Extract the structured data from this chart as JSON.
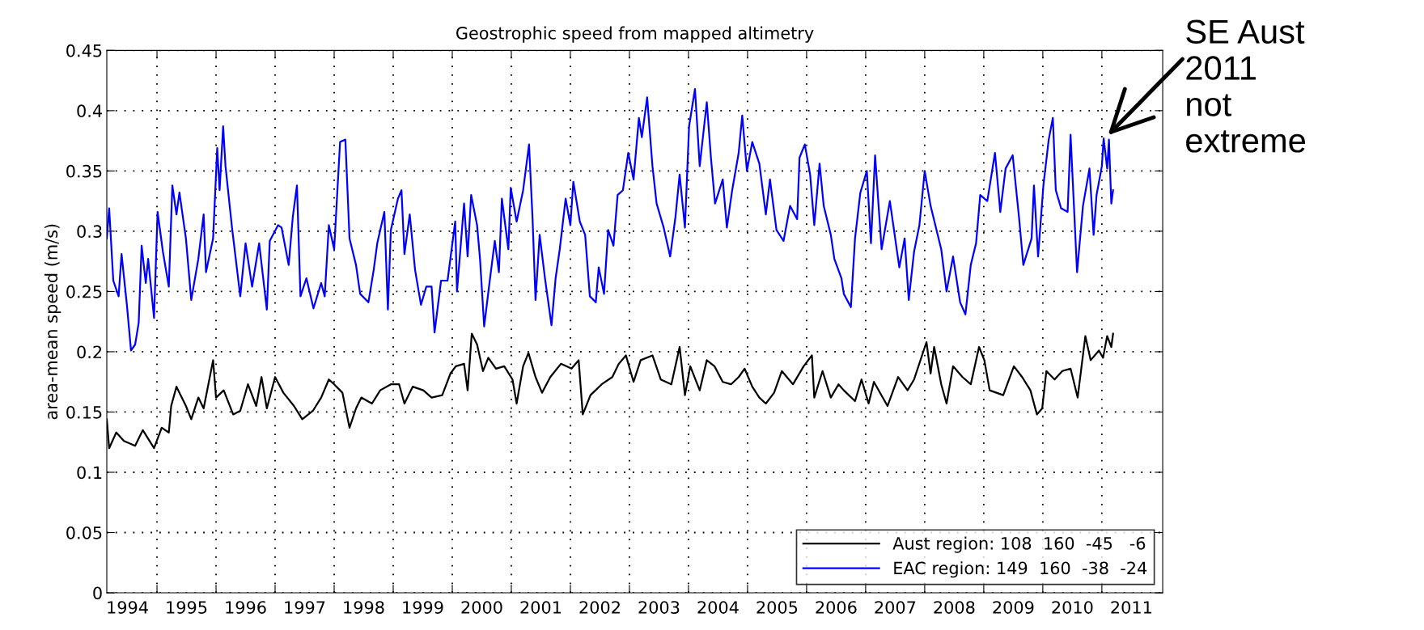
{
  "chart_data": {
    "type": "line",
    "title": "Geostrophic speed from mapped altimetry",
    "ylabel": "area-mean speed (m/s)",
    "xlim": [
      1994.15,
      2012.03
    ],
    "xticks": [
      {
        "value": 1995,
        "label": null
      },
      {
        "value": 1996,
        "label": null
      },
      {
        "value": 1997,
        "label": null
      },
      {
        "value": 1998,
        "label": null
      },
      {
        "value": 1999,
        "label": null
      },
      {
        "value": 2000,
        "label": null
      },
      {
        "value": 2001,
        "label": null
      },
      {
        "value": 2002,
        "label": null
      },
      {
        "value": 2003,
        "label": null
      },
      {
        "value": 2004,
        "label": null
      },
      {
        "value": 2005,
        "label": null
      },
      {
        "value": 2006,
        "label": null
      },
      {
        "value": 2007,
        "label": null
      },
      {
        "value": 2008,
        "label": null
      },
      {
        "value": 2009,
        "label": null
      },
      {
        "value": 2010,
        "label": null
      },
      {
        "value": 2011,
        "label": null
      },
      {
        "value": 1994.5,
        "label": "1994"
      },
      {
        "value": 1995.5,
        "label": "1995"
      },
      {
        "value": 1996.5,
        "label": "1996"
      },
      {
        "value": 1997.5,
        "label": "1997"
      },
      {
        "value": 1998.5,
        "label": "1998"
      },
      {
        "value": 1999.5,
        "label": "1999"
      },
      {
        "value": 2000.5,
        "label": "2000"
      },
      {
        "value": 2001.5,
        "label": "2001"
      },
      {
        "value": 2002.5,
        "label": "2002"
      },
      {
        "value": 2003.5,
        "label": "2003"
      },
      {
        "value": 2004.5,
        "label": "2004"
      },
      {
        "value": 2005.5,
        "label": "2005"
      },
      {
        "value": 2006.5,
        "label": "2006"
      },
      {
        "value": 2007.5,
        "label": "2007"
      },
      {
        "value": 2008.5,
        "label": "2008"
      },
      {
        "value": 2009.5,
        "label": "2009"
      },
      {
        "value": 2010.5,
        "label": "2010"
      },
      {
        "value": 2011.5,
        "label": "2011"
      }
    ],
    "ylim": [
      0,
      0.45
    ],
    "yticks": [
      0,
      0.05,
      0.1,
      0.15,
      0.2,
      0.25,
      0.3,
      0.35,
      0.4,
      0.45
    ],
    "grid": true,
    "legend": "bottom right",
    "marker": "none",
    "line_style": "solid",
    "annotations": [
      {
        "text": "SE Aust\n2011\nnot\nextreme",
        "x": 2011.05,
        "y": 0.377
      }
    ],
    "series": [
      {
        "name": "Aust region: 108  160  -45   -6",
        "color": "#000000",
        "x": [
          1994.15,
          1994.19,
          1994.31,
          1994.44,
          1994.63,
          1994.76,
          1994.95,
          1995.08,
          1995.2,
          1995.24,
          1995.33,
          1995.49,
          1995.58,
          1995.7,
          1995.79,
          1995.95,
          1996.0,
          1996.13,
          1996.29,
          1996.41,
          1996.54,
          1996.68,
          1996.77,
          1996.86,
          1997.0,
          1997.14,
          1997.32,
          1997.46,
          1997.64,
          1997.78,
          1997.91,
          1998.0,
          1998.14,
          1998.26,
          1998.37,
          1998.46,
          1998.64,
          1998.78,
          1998.96,
          1999.1,
          1999.19,
          1999.33,
          1999.51,
          1999.65,
          1999.83,
          1999.97,
          2000.06,
          2000.2,
          2000.26,
          2000.33,
          2000.42,
          2000.52,
          2000.61,
          2000.74,
          2000.88,
          2001.02,
          2001.09,
          2001.2,
          2001.29,
          2001.41,
          2001.52,
          2001.66,
          2001.84,
          2002.02,
          2002.14,
          2002.21,
          2002.34,
          2002.53,
          2002.71,
          2002.82,
          2002.94,
          2003.07,
          2003.19,
          2003.39,
          2003.53,
          2003.71,
          2003.85,
          2003.94,
          2004.03,
          2004.19,
          2004.31,
          2004.44,
          2004.58,
          2004.72,
          2004.85,
          2004.95,
          2005.08,
          2005.2,
          2005.31,
          2005.45,
          2005.58,
          2005.77,
          2005.95,
          2006.09,
          2006.13,
          2006.27,
          2006.41,
          2006.54,
          2006.63,
          2006.82,
          2006.93,
          2007.05,
          2007.14,
          2007.37,
          2007.55,
          2007.71,
          2007.82,
          2008.03,
          2008.1,
          2008.16,
          2008.28,
          2008.37,
          2008.48,
          2008.64,
          2008.78,
          2008.92,
          2009.01,
          2009.1,
          2009.33,
          2009.51,
          2009.65,
          2009.79,
          2009.9,
          2009.99,
          2010.06,
          2010.2,
          2010.33,
          2010.47,
          2010.59,
          2010.72,
          2010.81,
          2010.95,
          2011.02,
          2011.09,
          2011.16,
          2011.19
        ],
        "values": [
          0.144,
          0.12,
          0.133,
          0.126,
          0.122,
          0.135,
          0.12,
          0.137,
          0.133,
          0.155,
          0.171,
          0.155,
          0.144,
          0.162,
          0.153,
          0.193,
          0.162,
          0.168,
          0.148,
          0.151,
          0.173,
          0.155,
          0.179,
          0.153,
          0.179,
          0.166,
          0.155,
          0.144,
          0.151,
          0.162,
          0.177,
          0.173,
          0.166,
          0.137,
          0.153,
          0.162,
          0.157,
          0.168,
          0.173,
          0.173,
          0.157,
          0.171,
          0.168,
          0.162,
          0.164,
          0.182,
          0.188,
          0.19,
          0.168,
          0.215,
          0.206,
          0.184,
          0.195,
          0.186,
          0.188,
          0.177,
          0.157,
          0.188,
          0.199,
          0.179,
          0.166,
          0.179,
          0.19,
          0.186,
          0.193,
          0.148,
          0.164,
          0.173,
          0.179,
          0.19,
          0.197,
          0.175,
          0.193,
          0.197,
          0.177,
          0.173,
          0.204,
          0.164,
          0.188,
          0.168,
          0.193,
          0.188,
          0.175,
          0.173,
          0.179,
          0.186,
          0.171,
          0.162,
          0.157,
          0.166,
          0.184,
          0.173,
          0.188,
          0.197,
          0.162,
          0.184,
          0.162,
          0.173,
          0.168,
          0.159,
          0.177,
          0.157,
          0.175,
          0.155,
          0.179,
          0.168,
          0.177,
          0.208,
          0.182,
          0.204,
          0.173,
          0.157,
          0.188,
          0.179,
          0.173,
          0.204,
          0.193,
          0.168,
          0.164,
          0.188,
          0.179,
          0.168,
          0.148,
          0.153,
          0.184,
          0.177,
          0.184,
          0.186,
          0.162,
          0.213,
          0.193,
          0.201,
          0.195,
          0.213,
          0.204,
          0.215
        ]
      },
      {
        "name": "EAC region: 149  160  -38  -24",
        "color": "#0000ff",
        "x": [
          1994.15,
          1994.19,
          1994.26,
          1994.35,
          1994.4,
          1994.49,
          1994.56,
          1994.63,
          1994.69,
          1994.74,
          1994.81,
          1994.85,
          1994.95,
          1995.01,
          1995.1,
          1995.2,
          1995.26,
          1995.33,
          1995.38,
          1995.49,
          1995.58,
          1995.7,
          1995.79,
          1995.83,
          1995.95,
          1996.02,
          1996.06,
          1996.12,
          1996.16,
          1996.27,
          1996.41,
          1996.5,
          1996.61,
          1996.73,
          1996.86,
          1996.91,
          1997.05,
          1997.11,
          1997.23,
          1997.3,
          1997.37,
          1997.43,
          1997.53,
          1997.65,
          1997.78,
          1997.84,
          1997.91,
          1998.0,
          1998.1,
          1998.19,
          1998.26,
          1998.37,
          1998.44,
          1998.58,
          1998.67,
          1998.73,
          1998.85,
          1998.91,
          1998.96,
          1999.08,
          1999.14,
          1999.19,
          1999.28,
          1999.37,
          1999.47,
          1999.56,
          1999.65,
          1999.7,
          1999.81,
          1999.92,
          2000.05,
          2000.08,
          2000.2,
          2000.26,
          2000.32,
          2000.42,
          2000.47,
          2000.54,
          2000.63,
          2000.72,
          2000.79,
          2000.84,
          2000.95,
          2000.99,
          2001.09,
          2001.2,
          2001.3,
          2001.36,
          2001.41,
          2001.48,
          2001.57,
          2001.68,
          2001.75,
          2001.82,
          2001.92,
          2002.0,
          2002.05,
          2002.16,
          2002.25,
          2002.33,
          2002.43,
          2002.48,
          2002.57,
          2002.64,
          2002.73,
          2002.8,
          2002.89,
          2002.98,
          2003.07,
          2003.16,
          2003.21,
          2003.3,
          2003.39,
          2003.46,
          2003.58,
          2003.69,
          2003.78,
          2003.85,
          2003.94,
          2004.01,
          2004.11,
          2004.19,
          2004.31,
          2004.38,
          2004.45,
          2004.58,
          2004.65,
          2004.74,
          2004.85,
          2004.91,
          2004.99,
          2005.08,
          2005.2,
          2005.31,
          2005.38,
          2005.49,
          2005.61,
          2005.72,
          2005.84,
          2005.88,
          2005.97,
          2006.06,
          2006.13,
          2006.22,
          2006.29,
          2006.41,
          2006.47,
          2006.59,
          2006.63,
          2006.75,
          2006.82,
          2006.91,
          2007.02,
          2007.09,
          2007.16,
          2007.27,
          2007.41,
          2007.57,
          2007.66,
          2007.73,
          2007.82,
          2007.91,
          2008.0,
          2008.1,
          2008.28,
          2008.37,
          2008.48,
          2008.6,
          2008.69,
          2008.78,
          2008.87,
          2008.94,
          2009.06,
          2009.19,
          2009.28,
          2009.37,
          2009.49,
          2009.6,
          2009.67,
          2009.81,
          2009.85,
          2009.92,
          2010.01,
          2010.1,
          2010.17,
          2010.22,
          2010.31,
          2010.42,
          2010.47,
          2010.58,
          2010.68,
          2010.79,
          2010.86,
          2010.91,
          2011.0,
          2011.03,
          2011.09,
          2011.12,
          2011.16,
          2011.19
        ],
        "values": [
          0.294,
          0.319,
          0.259,
          0.246,
          0.281,
          0.239,
          0.201,
          0.206,
          0.224,
          0.288,
          0.257,
          0.277,
          0.228,
          0.316,
          0.283,
          0.254,
          0.338,
          0.314,
          0.332,
          0.294,
          0.243,
          0.277,
          0.314,
          0.266,
          0.294,
          0.369,
          0.334,
          0.387,
          0.354,
          0.303,
          0.246,
          0.29,
          0.254,
          0.29,
          0.235,
          0.292,
          0.305,
          0.303,
          0.272,
          0.312,
          0.338,
          0.246,
          0.261,
          0.236,
          0.257,
          0.246,
          0.305,
          0.285,
          0.374,
          0.376,
          0.294,
          0.272,
          0.248,
          0.241,
          0.268,
          0.29,
          0.316,
          0.235,
          0.301,
          0.327,
          0.334,
          0.281,
          0.314,
          0.268,
          0.239,
          0.254,
          0.254,
          0.216,
          0.259,
          0.259,
          0.308,
          0.25,
          0.323,
          0.279,
          0.33,
          0.305,
          0.277,
          0.221,
          0.257,
          0.292,
          0.266,
          0.327,
          0.285,
          0.336,
          0.308,
          0.334,
          0.372,
          0.31,
          0.243,
          0.297,
          0.261,
          0.222,
          0.261,
          0.285,
          0.327,
          0.305,
          0.341,
          0.308,
          0.297,
          0.246,
          0.241,
          0.27,
          0.248,
          0.301,
          0.288,
          0.33,
          0.334,
          0.365,
          0.343,
          0.394,
          0.378,
          0.411,
          0.354,
          0.323,
          0.303,
          0.279,
          0.312,
          0.347,
          0.303,
          0.387,
          0.418,
          0.354,
          0.407,
          0.361,
          0.323,
          0.343,
          0.303,
          0.334,
          0.365,
          0.396,
          0.35,
          0.374,
          0.356,
          0.314,
          0.343,
          0.301,
          0.292,
          0.321,
          0.31,
          0.361,
          0.372,
          0.347,
          0.305,
          0.356,
          0.321,
          0.297,
          0.277,
          0.261,
          0.248,
          0.237,
          0.294,
          0.332,
          0.35,
          0.29,
          0.363,
          0.285,
          0.325,
          0.27,
          0.294,
          0.243,
          0.283,
          0.305,
          0.35,
          0.321,
          0.285,
          0.25,
          0.279,
          0.241,
          0.231,
          0.272,
          0.29,
          0.33,
          0.325,
          0.365,
          0.316,
          0.352,
          0.363,
          0.31,
          0.272,
          0.294,
          0.338,
          0.279,
          0.338,
          0.376,
          0.394,
          0.334,
          0.319,
          0.316,
          0.38,
          0.266,
          0.321,
          0.352,
          0.297,
          0.33,
          0.354,
          0.377,
          0.352,
          0.376,
          0.323,
          0.334
        ]
      }
    ]
  }
}
